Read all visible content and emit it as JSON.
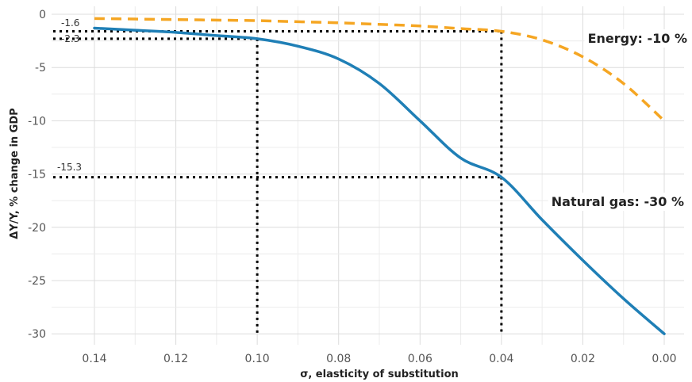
{
  "chart_data": {
    "type": "line",
    "title": "",
    "xlabel": "σ, elasticity of substitution",
    "ylabel": "ΔY/Y, % change in GDP",
    "xlim": [
      0.14,
      0.0
    ],
    "ylim": [
      -31,
      0.5
    ],
    "x_reversed": true,
    "grid": true,
    "legend": "inline labels at line ends",
    "xticks": [
      0.14,
      0.13,
      0.12,
      0.11,
      0.1,
      0.09,
      0.08,
      0.07,
      0.06,
      0.05,
      0.04,
      0.03,
      0.02,
      0.01,
      0.0
    ],
    "xtick_labels": [
      "0.14",
      "0.12",
      "0.10",
      "0.08",
      "0.06",
      "0.04",
      "0.02",
      "0.00"
    ],
    "xtick_label_values": [
      0.14,
      0.12,
      0.1,
      0.08,
      0.06,
      0.04,
      0.02,
      0.0
    ],
    "ytick_labels": [
      "0",
      "-5",
      "-10",
      "-15",
      "-20",
      "-25",
      "-30"
    ],
    "ytick_label_values": [
      0,
      -5,
      -10,
      -15,
      -20,
      -25,
      -30
    ],
    "series": [
      {
        "name": "Natural gas: -30 %",
        "color": "#1f7fb6",
        "style": "solid",
        "x": [
          0.14,
          0.13,
          0.12,
          0.11,
          0.1,
          0.09,
          0.08,
          0.07,
          0.06,
          0.05,
          0.04,
          0.03,
          0.02,
          0.01,
          0.0
        ],
        "y": [
          -1.3,
          -1.5,
          -1.7,
          -2.0,
          -2.3,
          -3.0,
          -4.2,
          -6.5,
          -10.0,
          -13.5,
          -15.3,
          -19.3,
          -23.1,
          -26.7,
          -30.0
        ]
      },
      {
        "name": "Energy: -10 %",
        "color": "#f5a623",
        "style": "dashed",
        "x": [
          0.14,
          0.13,
          0.12,
          0.11,
          0.1,
          0.09,
          0.08,
          0.07,
          0.06,
          0.05,
          0.04,
          0.03,
          0.02,
          0.01,
          0.0
        ],
        "y": [
          -0.4,
          -0.45,
          -0.5,
          -0.55,
          -0.6,
          -0.7,
          -0.8,
          -0.95,
          -1.1,
          -1.35,
          -1.6,
          -2.4,
          -4.0,
          -6.5,
          -10.0
        ]
      }
    ],
    "annotations": {
      "reference_y": [
        -1.6,
        -2.3,
        -15.3
      ],
      "reference_y_labels": [
        "-1.6",
        "-2.3",
        "-15.3"
      ],
      "reference_x": [
        0.1,
        0.04
      ]
    }
  }
}
